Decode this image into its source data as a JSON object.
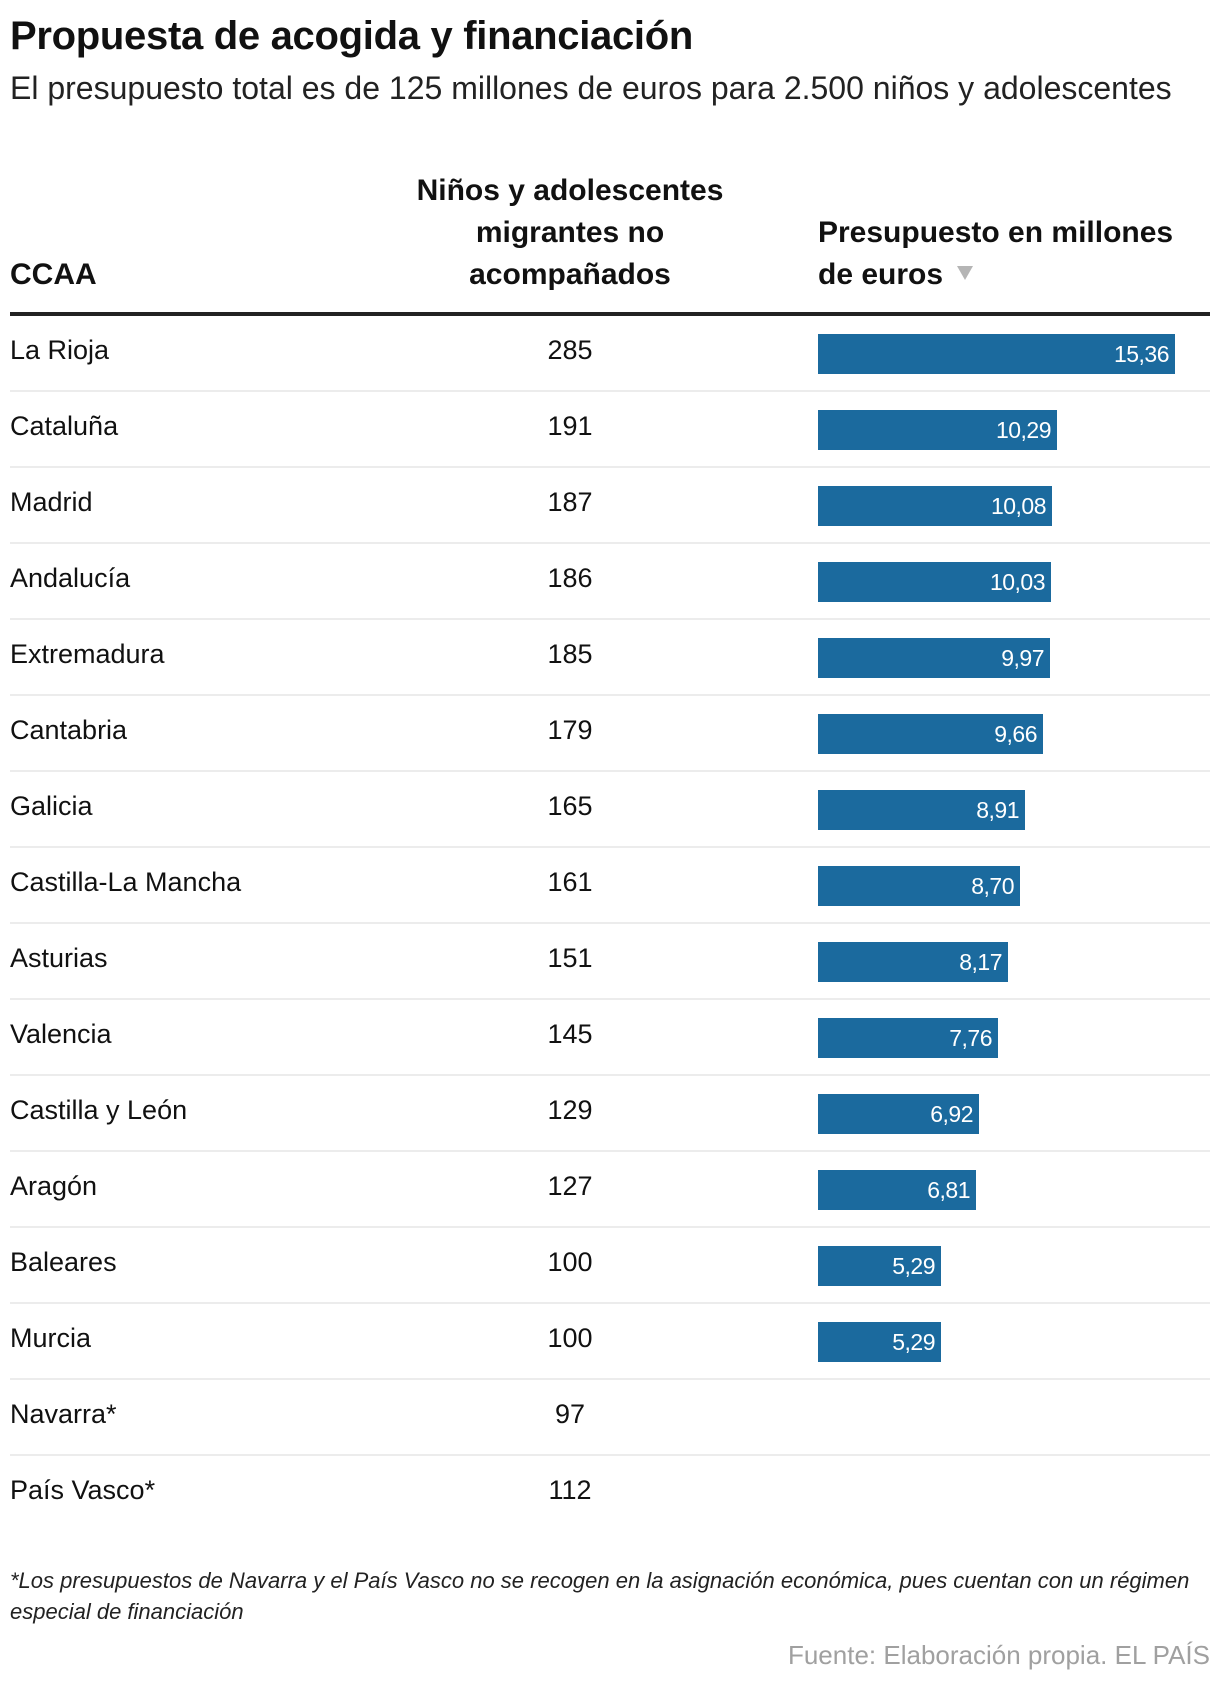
{
  "header": {
    "title": "Propuesta de acogida y financiación",
    "subtitle": "El presupuesto total es de 125 millones de euros para 2.500 niños y adolescentes"
  },
  "table": {
    "columns": [
      "CCAA",
      "Niños y adolescentes migrantes no acompañados",
      "Presupuesto en millones de euros"
    ],
    "sort_icon": "triangle-down-icon",
    "bar_color": "#1b6a9e",
    "rows": [
      {
        "ccaa": "La Rioja",
        "ninos": "285",
        "presupuesto": "15,36"
      },
      {
        "ccaa": "Cataluña",
        "ninos": "191",
        "presupuesto": "10,29"
      },
      {
        "ccaa": "Madrid",
        "ninos": "187",
        "presupuesto": "10,08"
      },
      {
        "ccaa": "Andalucía",
        "ninos": "186",
        "presupuesto": "10,03"
      },
      {
        "ccaa": "Extremadura",
        "ninos": "185",
        "presupuesto": "9,97"
      },
      {
        "ccaa": "Cantabria",
        "ninos": "179",
        "presupuesto": "9,66"
      },
      {
        "ccaa": "Galicia",
        "ninos": "165",
        "presupuesto": "8,91"
      },
      {
        "ccaa": "Castilla-La Mancha",
        "ninos": "161",
        "presupuesto": "8,70"
      },
      {
        "ccaa": "Asturias",
        "ninos": "151",
        "presupuesto": "8,17"
      },
      {
        "ccaa": "Valencia",
        "ninos": "145",
        "presupuesto": "7,76"
      },
      {
        "ccaa": "Castilla y León",
        "ninos": "129",
        "presupuesto": "6,92"
      },
      {
        "ccaa": "Aragón",
        "ninos": "127",
        "presupuesto": "6,81"
      },
      {
        "ccaa": "Baleares",
        "ninos": "100",
        "presupuesto": "5,29"
      },
      {
        "ccaa": "Murcia",
        "ninos": "100",
        "presupuesto": "5,29"
      },
      {
        "ccaa": "Navarra*",
        "ninos": "97",
        "presupuesto": null
      },
      {
        "ccaa": "País Vasco*",
        "ninos": "112",
        "presupuesto": null
      }
    ]
  },
  "chart_data": {
    "type": "table",
    "title": "Propuesta de acogida y financiación",
    "subtitle": "El presupuesto total es de 125 millones de euros para 2.500 niños y adolescentes",
    "categories": [
      "La Rioja",
      "Cataluña",
      "Madrid",
      "Andalucía",
      "Extremadura",
      "Cantabria",
      "Galicia",
      "Castilla-La Mancha",
      "Asturias",
      "Valencia",
      "Castilla y León",
      "Aragón",
      "Baleares",
      "Murcia",
      "Navarra*",
      "País Vasco*"
    ],
    "series": [
      {
        "name": "Niños y adolescentes migrantes no acompañados",
        "values": [
          285,
          191,
          187,
          186,
          185,
          179,
          165,
          161,
          151,
          145,
          129,
          127,
          100,
          100,
          97,
          112
        ]
      },
      {
        "name": "Presupuesto en millones de euros",
        "values": [
          15.36,
          10.29,
          10.08,
          10.03,
          9.97,
          9.66,
          8.91,
          8.7,
          8.17,
          7.76,
          6.92,
          6.81,
          5.29,
          5.29,
          null,
          null
        ]
      }
    ]
  },
  "footer": {
    "note": "*Los presupuestos de Navarra y el País Vasco no se recogen en la asignación económica, pues cuentan con un régimen especial de financiación",
    "source": "Fuente: Elaboración propia. EL PAÍS"
  }
}
